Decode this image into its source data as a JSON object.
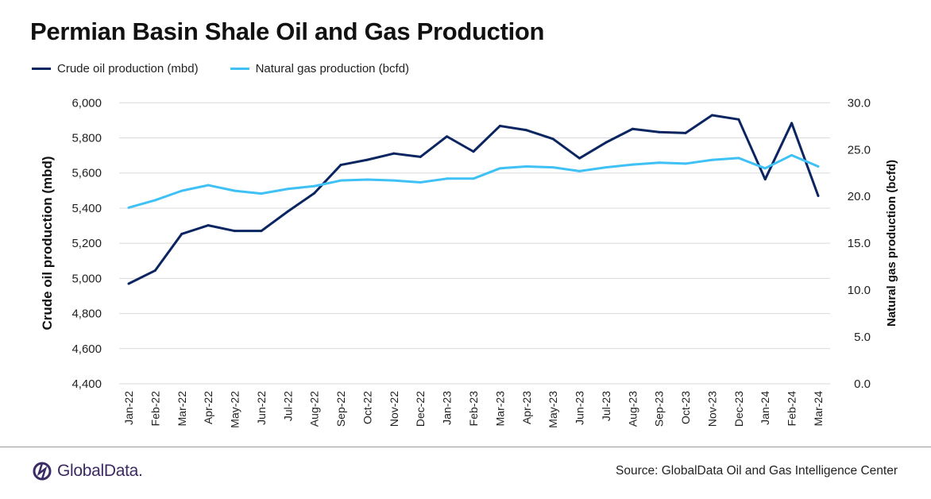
{
  "title": "Permian Basin Shale Oil and Gas Production",
  "source": "Source: GlobalData Oil and Gas Intelligence Center",
  "logo": "GlobalData.",
  "colors": {
    "oil": "#0b2560",
    "gas": "#3fc1f5",
    "grid": "#d9d9de",
    "logo": "#3b2a63"
  },
  "chart_data": {
    "type": "line",
    "title": "Permian Basin Shale Oil and Gas Production",
    "categories": [
      "Jan-22",
      "Feb-22",
      "Mar-22",
      "Apr-22",
      "May-22",
      "Jun-22",
      "Jul-22",
      "Aug-22",
      "Sep-22",
      "Oct-22",
      "Nov-22",
      "Dec-22",
      "Jan-23",
      "Feb-23",
      "Mar-23",
      "Apr-23",
      "May-23",
      "Jun-23",
      "Jul-23",
      "Aug-23",
      "Sep-23",
      "Oct-23",
      "Nov-23",
      "Dec-23",
      "Jan-24",
      "Feb-24",
      "Mar-24"
    ],
    "ylabel": "Crude oil production  (mbd)",
    "y2label": "Natural gas production (bcfd)",
    "ylim": [
      4400,
      6000
    ],
    "y2lim": [
      0,
      30
    ],
    "yticks": [
      "4,400",
      "4,600",
      "4,800",
      "5,000",
      "5,200",
      "5,400",
      "5,600",
      "5,800",
      "6,000"
    ],
    "y2ticks": [
      "0.0",
      "5.0",
      "10.0",
      "15.0",
      "20.0",
      "25.0",
      "30.0"
    ],
    "grid": true,
    "legend_placement": "top-left",
    "series": [
      {
        "name": "Crude oil production (mbd)",
        "axis": "left",
        "color": "#0b2560",
        "values": [
          4970,
          5045,
          5253,
          5302,
          5270,
          5270,
          5381,
          5485,
          5646,
          5675,
          5711,
          5692,
          5808,
          5722,
          5868,
          5844,
          5794,
          5684,
          5774,
          5851,
          5833,
          5828,
          5929,
          5905,
          5564,
          5884,
          5470
        ]
      },
      {
        "name": "Natural gas production (bcfd)",
        "axis": "right",
        "color": "#3fc1f5",
        "values": [
          18.8,
          19.6,
          20.6,
          21.2,
          20.6,
          20.3,
          20.8,
          21.1,
          21.7,
          21.8,
          21.7,
          21.5,
          21.9,
          21.9,
          23.0,
          23.2,
          23.1,
          22.7,
          23.1,
          23.4,
          23.6,
          23.5,
          23.9,
          24.1,
          23.0,
          24.4,
          23.2
        ]
      }
    ]
  }
}
